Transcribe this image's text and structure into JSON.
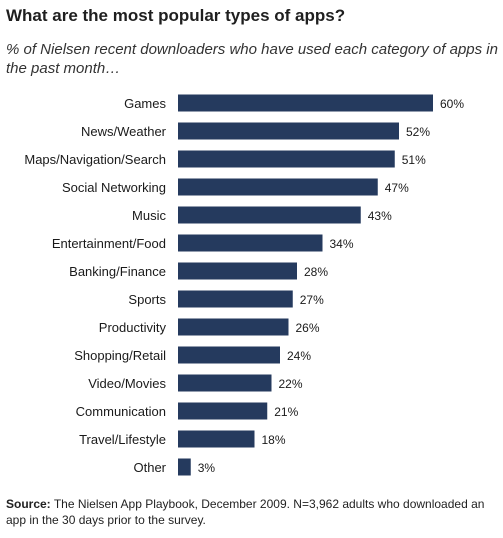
{
  "title": "What are the most popular types of apps?",
  "subtitle": "% of Nielsen recent downloaders who have used each category of apps in the past month…",
  "source_label": "Source:",
  "source_text": "The Nielsen App Playbook, December 2009. N=3,962 adults who downloaded an app in the 30 days prior to the survey.",
  "bar_color": "#253a5e",
  "chart_data": {
    "type": "bar",
    "orientation": "horizontal",
    "categories": [
      "Games",
      "News/Weather",
      "Maps/Navigation/Search",
      "Social Networking",
      "Music",
      "Entertainment/Food",
      "Banking/Finance",
      "Sports",
      "Productivity",
      "Shopping/Retail",
      "Video/Movies",
      "Communication",
      "Travel/Lifestyle",
      "Other"
    ],
    "values": [
      60,
      52,
      51,
      47,
      43,
      34,
      28,
      27,
      26,
      24,
      22,
      21,
      18,
      3
    ],
    "value_labels": [
      "60%",
      "52%",
      "51%",
      "47%",
      "43%",
      "34%",
      "28%",
      "27%",
      "26%",
      "24%",
      "22%",
      "21%",
      "18%",
      "3%"
    ],
    "xlim": [
      0,
      60
    ],
    "grid": false,
    "legend": "none"
  }
}
